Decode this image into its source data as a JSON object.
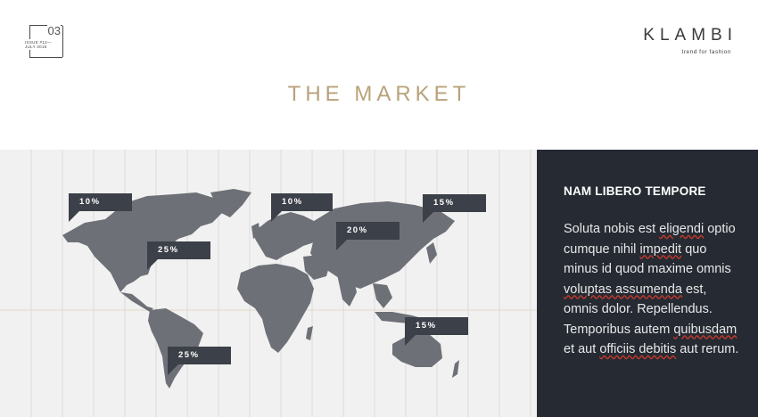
{
  "issue": {
    "number": "03",
    "label_line1": "ISSUE #12—",
    "label_line2": "JULY 2015"
  },
  "brand": {
    "name": "KLAMBI",
    "tagline": "trend for fashion"
  },
  "page_title": "THE MARKET",
  "markers": [
    {
      "id": "north-america-west",
      "value": "10%"
    },
    {
      "id": "north-america-east",
      "value": "25%"
    },
    {
      "id": "europe",
      "value": "10%"
    },
    {
      "id": "asia",
      "value": "20%"
    },
    {
      "id": "east-asia",
      "value": "15%"
    },
    {
      "id": "south-america",
      "value": "25%"
    },
    {
      "id": "australia",
      "value": "15%"
    }
  ],
  "panel": {
    "heading": "NAM LIBERO TEMPORE",
    "body_parts": [
      "Soluta nobis est ",
      "eligendi",
      " optio cumque nihil ",
      "impedit",
      " quo minus id quod maxime omnis ",
      "voluptas assumenda",
      " est, omnis dolor. Repellendus. Temporibus autem ",
      "quibusdam",
      " et aut ",
      "officiis debitis",
      " aut rerum."
    ]
  },
  "colors": {
    "accent_title": "#b8a27a",
    "panel_bg": "#252a33",
    "marker_bg": "#3c4048",
    "map_land": "#6d7076",
    "map_bg": "#f1f1f1"
  }
}
